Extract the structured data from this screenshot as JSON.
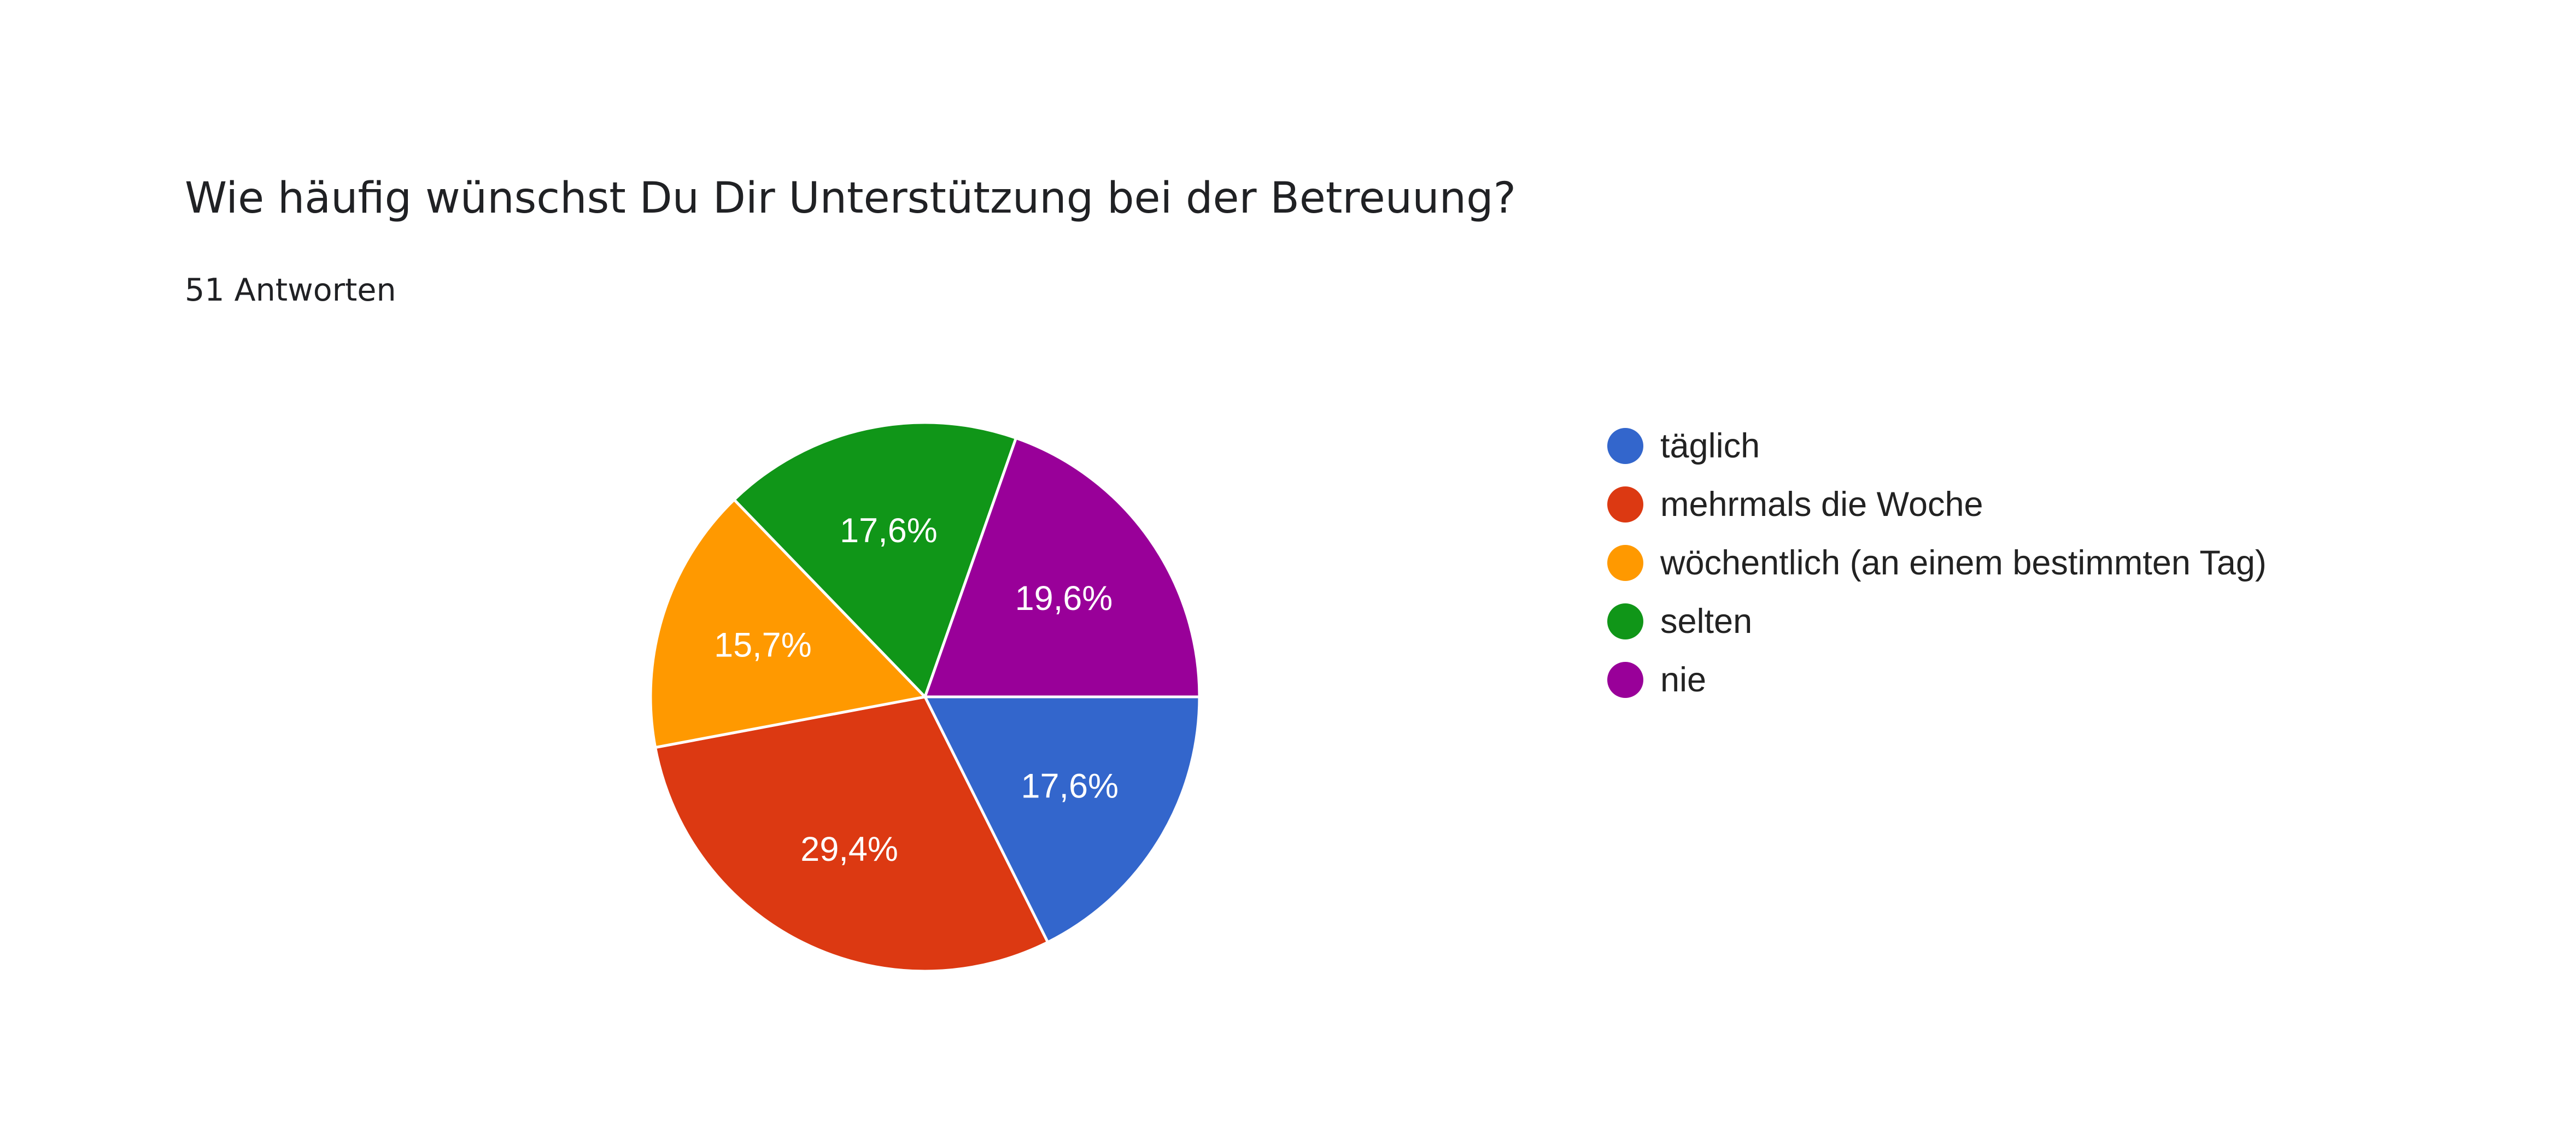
{
  "header": {
    "question": "Wie häufig wünschst Du Dir Unterstützung bei der Betreuung?",
    "responses": "51 Antworten"
  },
  "chart_data": {
    "type": "pie",
    "title": "Wie häufig wünschst Du Dir Unterstützung bei der Betreuung?",
    "subtitle": "51 Antworten",
    "slices": [
      {
        "label": "täglich",
        "value": 17.6,
        "display": "17,6%",
        "color": "#3366cc"
      },
      {
        "label": "mehrmals die Woche",
        "value": 29.4,
        "display": "29,4%",
        "color": "#dc3912"
      },
      {
        "label": "wöchentlich (an einem bestimmten Tag)",
        "value": 15.7,
        "display": "15,7%",
        "color": "#ff9900"
      },
      {
        "label": "selten",
        "value": 17.6,
        "display": "17,6%",
        "color": "#109618"
      },
      {
        "label": "nie",
        "value": 19.6,
        "display": "19,6%",
        "color": "#990099"
      }
    ],
    "legend_position": "right",
    "start_angle_direction": "clockwise-from-3-oclock"
  }
}
